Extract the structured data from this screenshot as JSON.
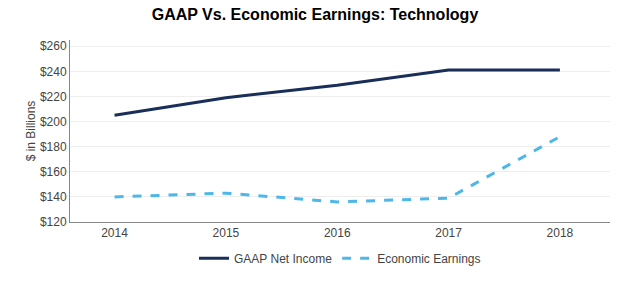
{
  "chart_data": {
    "type": "line",
    "title": "GAAP Vs. Economic Earnings: Technology",
    "ylabel": "$ in Billions",
    "x": [
      2014,
      2015,
      2016,
      2017,
      2018
    ],
    "series": [
      {
        "name": "GAAP Net Income",
        "color": "#1a2e5a",
        "line_style": "solid",
        "values": [
          205,
          219,
          229,
          241,
          241
        ]
      },
      {
        "name": "Economic Earnings",
        "color": "#4db8e8",
        "line_style": "dashed",
        "values": [
          140,
          143,
          136,
          139,
          188
        ]
      }
    ],
    "xlim": [
      2013.6,
      2018.45
    ],
    "xticks": [
      2014,
      2015,
      2016,
      2017,
      2018
    ],
    "ylim": [
      120,
      265
    ],
    "yticks": [
      {
        "value": 120,
        "label": "$120"
      },
      {
        "value": 140,
        "label": "$140"
      },
      {
        "value": 160,
        "label": "$160"
      },
      {
        "value": 180,
        "label": "$180"
      },
      {
        "value": 200,
        "label": "$200"
      },
      {
        "value": 220,
        "label": "$220"
      },
      {
        "value": 240,
        "label": "$240"
      },
      {
        "value": 260,
        "label": "$260"
      }
    ],
    "grid": true,
    "legend": "bottom"
  }
}
